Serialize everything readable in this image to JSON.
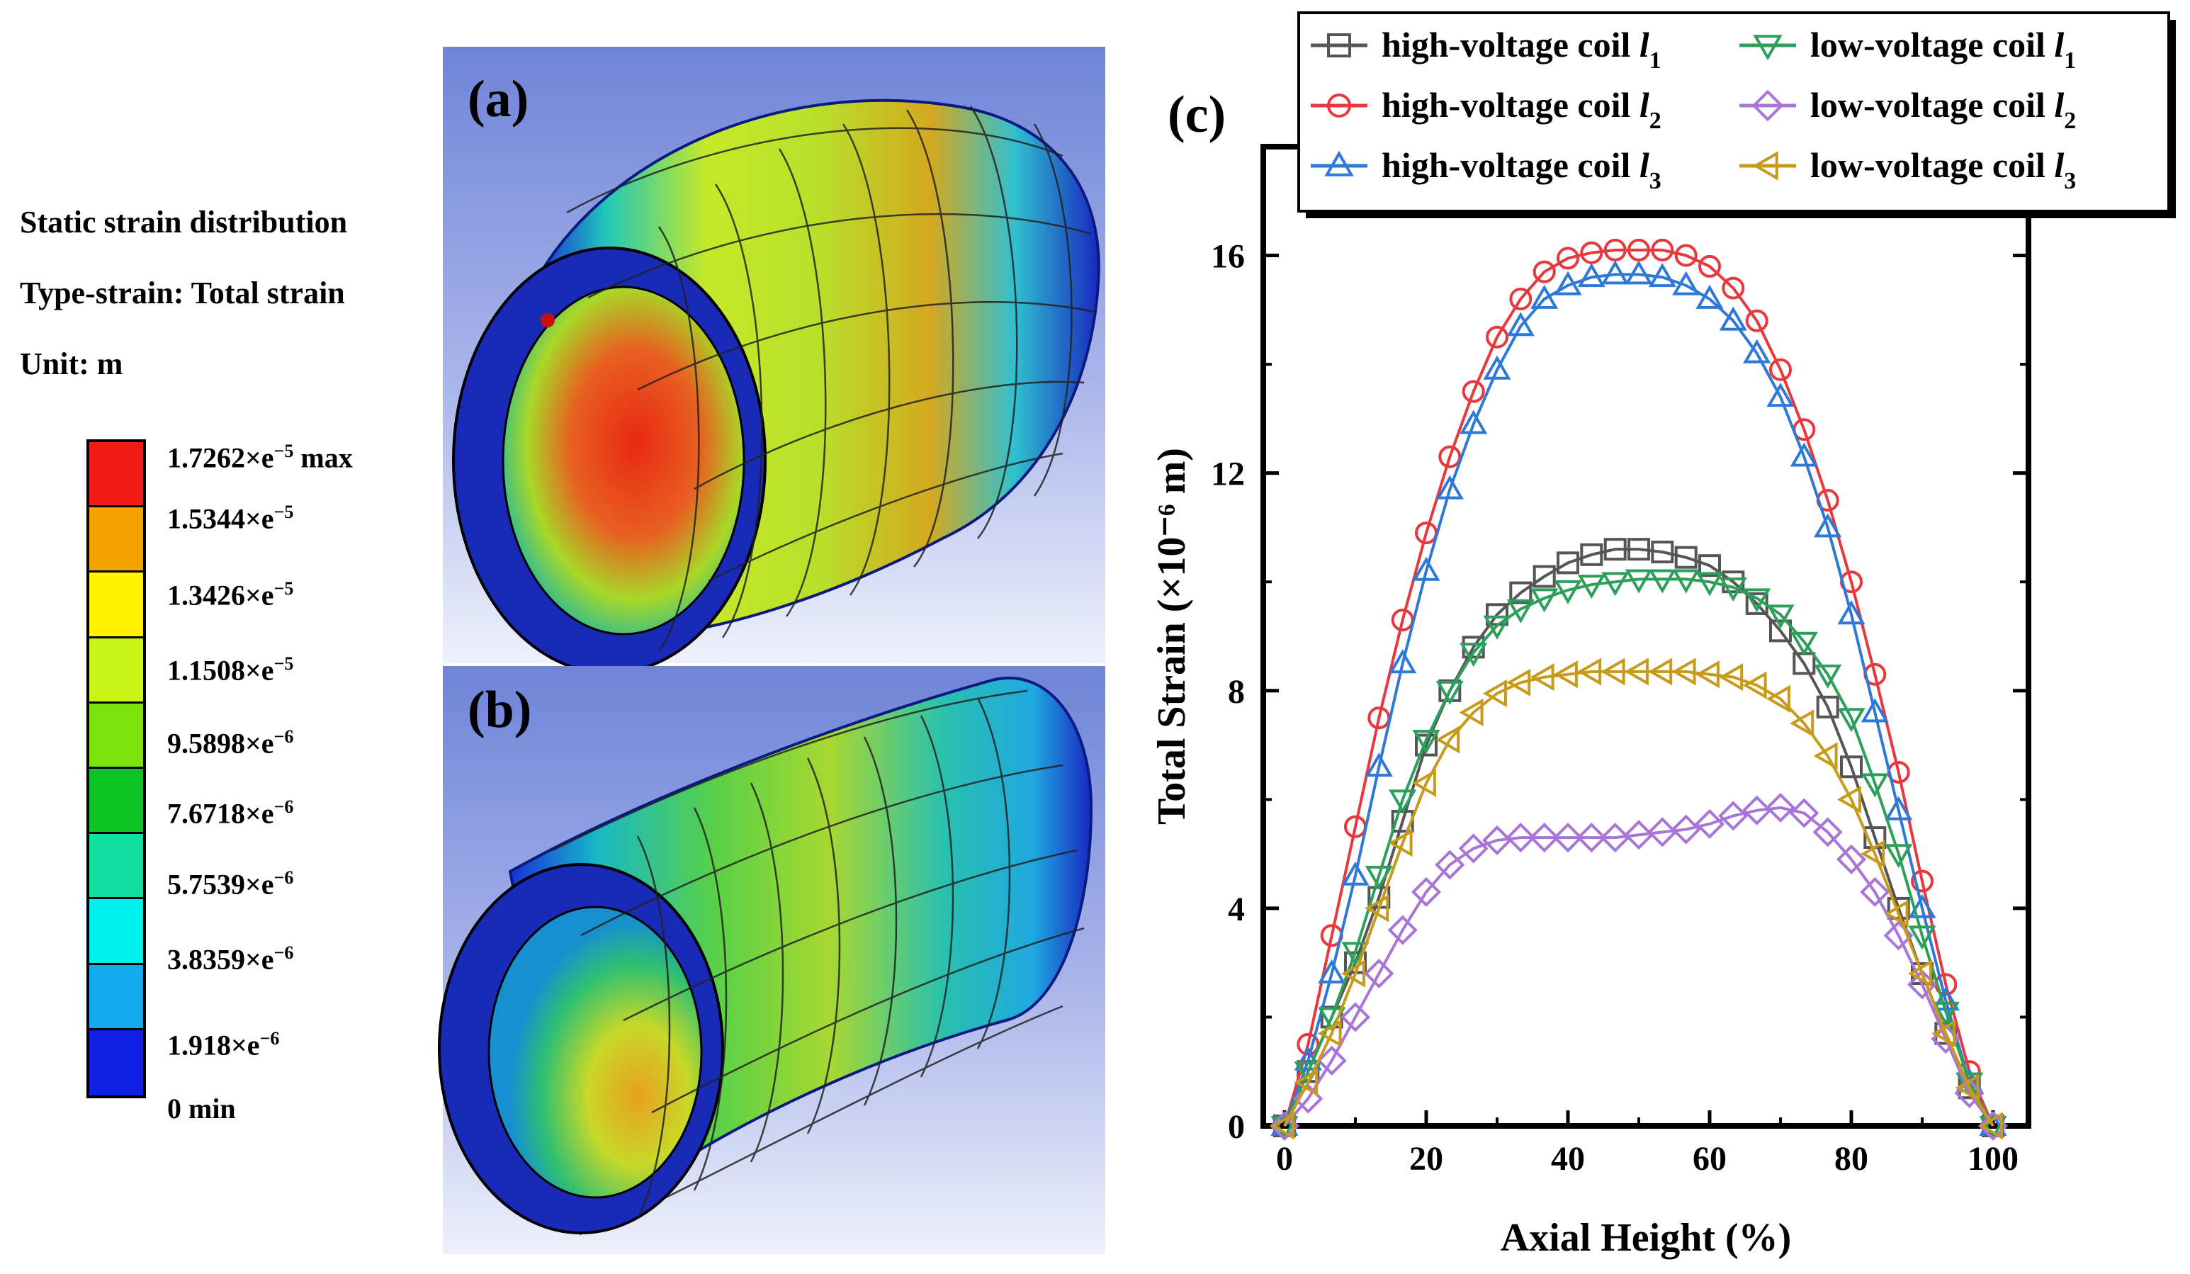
{
  "left_panel": {
    "info_lines": [
      "Static strain distribution",
      "Type-strain: Total strain",
      "Unit: m"
    ],
    "colorbar": {
      "labels": [
        "1.7262×e",
        "1.5344×e",
        "1.3426×e",
        "1.1508×e",
        "9.5898×e",
        "7.6718×e",
        "5.7539×e",
        "3.8359×e",
        "1.918×e",
        "0"
      ],
      "exponents": [
        "−5",
        "−5",
        "−5",
        "−5",
        "−6",
        "−6",
        "−6",
        "−6",
        "−6",
        ""
      ],
      "suffixes": [
        "max",
        "",
        "",
        "",
        "",
        "",
        "",
        "",
        "",
        "min"
      ],
      "colors": [
        "#ee1c14",
        "#f6a200",
        "#fff200",
        "#c8f516",
        "#7be20c",
        "#0ec424",
        "#12e0a2",
        "#00f0f0",
        "#14aaf0",
        "#1020e6"
      ]
    }
  },
  "panel_labels": {
    "a": "(a)",
    "b": "(b)",
    "c": "(c)"
  },
  "chart_data": {
    "type": "line",
    "xlabel": "Axial Height (%)",
    "ylabel": "Total Strain (×10⁻⁶ m)",
    "xlim": [
      -3,
      105
    ],
    "ylim": [
      0,
      18
    ],
    "xticks": [
      0,
      20,
      40,
      60,
      80,
      100
    ],
    "yticks": [
      0,
      4,
      8,
      12,
      16
    ],
    "grid": false,
    "legend_position": "top",
    "x": [
      0,
      3.33,
      6.67,
      10,
      13.33,
      16.67,
      20,
      23.33,
      26.67,
      30,
      33.33,
      36.67,
      40,
      43.33,
      46.67,
      50,
      53.33,
      56.67,
      60,
      63.33,
      66.67,
      70,
      73.33,
      76.67,
      80,
      83.33,
      86.67,
      90,
      93.33,
      96.67,
      100
    ],
    "series": [
      {
        "name": "high-voltage coil",
        "sub": "1",
        "color": "#555555",
        "marker": "square",
        "values": [
          0,
          1.0,
          2.0,
          3.0,
          4.2,
          5.6,
          7.0,
          8.0,
          8.8,
          9.4,
          9.8,
          10.1,
          10.35,
          10.5,
          10.6,
          10.6,
          10.55,
          10.45,
          10.3,
          10.0,
          9.6,
          9.1,
          8.5,
          7.7,
          6.6,
          5.3,
          4.0,
          2.8,
          1.7,
          0.7,
          0
        ]
      },
      {
        "name": "high-voltage coil",
        "sub": "2",
        "color": "#e8383d",
        "marker": "circle",
        "values": [
          0,
          1.5,
          3.5,
          5.5,
          7.5,
          9.3,
          10.9,
          12.3,
          13.5,
          14.5,
          15.2,
          15.7,
          15.95,
          16.05,
          16.1,
          16.1,
          16.1,
          16.0,
          15.8,
          15.4,
          14.8,
          13.9,
          12.8,
          11.5,
          10.0,
          8.3,
          6.5,
          4.5,
          2.6,
          1.0,
          0
        ]
      },
      {
        "name": "high-voltage coil",
        "sub": "3",
        "color": "#2e78d8",
        "marker": "triangle-up",
        "values": [
          0,
          1.2,
          2.8,
          4.6,
          6.6,
          8.5,
          10.2,
          11.7,
          12.9,
          13.9,
          14.7,
          15.2,
          15.45,
          15.6,
          15.65,
          15.65,
          15.6,
          15.45,
          15.2,
          14.8,
          14.2,
          13.4,
          12.3,
          11.0,
          9.4,
          7.6,
          5.8,
          4.0,
          2.3,
          0.8,
          0
        ]
      },
      {
        "name": "low-voltage coil",
        "sub": "1",
        "color": "#2ca05a",
        "marker": "triangle-down",
        "values": [
          0,
          1.0,
          2.0,
          3.2,
          4.6,
          6.0,
          7.1,
          8.0,
          8.7,
          9.2,
          9.5,
          9.7,
          9.85,
          9.95,
          10.0,
          10.05,
          10.05,
          10.05,
          10.0,
          9.9,
          9.7,
          9.4,
          8.9,
          8.3,
          7.5,
          6.3,
          5.0,
          3.5,
          2.1,
          0.8,
          0
        ]
      },
      {
        "name": "low-voltage coil",
        "sub": "2",
        "color": "#a874d8",
        "marker": "diamond",
        "values": [
          0,
          0.5,
          1.2,
          2.0,
          2.8,
          3.6,
          4.3,
          4.8,
          5.1,
          5.25,
          5.3,
          5.3,
          5.3,
          5.3,
          5.3,
          5.35,
          5.4,
          5.45,
          5.55,
          5.7,
          5.8,
          5.85,
          5.75,
          5.4,
          4.9,
          4.3,
          3.5,
          2.6,
          1.6,
          0.6,
          0
        ]
      },
      {
        "name": "low-voltage coil",
        "sub": "3",
        "color": "#c89a1a",
        "marker": "triangle-left",
        "values": [
          0,
          0.8,
          1.7,
          2.8,
          4.0,
          5.2,
          6.3,
          7.1,
          7.6,
          7.95,
          8.15,
          8.25,
          8.3,
          8.35,
          8.35,
          8.35,
          8.35,
          8.35,
          8.3,
          8.25,
          8.1,
          7.85,
          7.4,
          6.8,
          6.0,
          5.0,
          3.9,
          2.8,
          1.7,
          0.7,
          0
        ]
      }
    ]
  }
}
